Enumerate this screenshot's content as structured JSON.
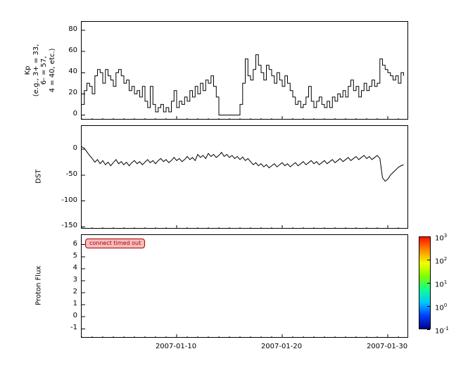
{
  "figure": {
    "background": "#ffffff",
    "line_color": "#000000"
  },
  "xaxis": {
    "xlim_days": [
      1,
      32
    ],
    "tick_days": [
      10,
      20,
      30
    ],
    "tick_labels": [
      "2007-01-10",
      "2007-01-20",
      "2007-01-30"
    ],
    "minor_tick_step_days": 1
  },
  "chart_data": [
    {
      "type": "line",
      "style": "step",
      "series_name": "Kp",
      "ylabel": "Kp\n(e.g., 3+ = 33,\n6- = 57,\n4 = 40, etc.)",
      "ylim": [
        -5,
        88
      ],
      "yticks": [
        0,
        20,
        40,
        60,
        80
      ],
      "x_start_day": 1.0,
      "x_step_days": 0.25,
      "values": [
        10,
        23,
        30,
        27,
        20,
        37,
        43,
        40,
        30,
        43,
        37,
        33,
        27,
        40,
        43,
        37,
        30,
        33,
        23,
        27,
        20,
        23,
        17,
        27,
        13,
        7,
        27,
        10,
        3,
        7,
        10,
        3,
        7,
        3,
        13,
        23,
        7,
        13,
        10,
        17,
        13,
        23,
        17,
        27,
        20,
        30,
        23,
        33,
        30,
        37,
        27,
        17,
        0,
        0,
        0,
        0,
        0,
        0,
        0,
        0,
        10,
        30,
        53,
        37,
        33,
        43,
        57,
        47,
        40,
        33,
        47,
        43,
        37,
        30,
        40,
        33,
        27,
        37,
        30,
        23,
        17,
        10,
        13,
        7,
        10,
        17,
        27,
        13,
        7,
        13,
        17,
        10,
        7,
        13,
        7,
        17,
        13,
        20,
        17,
        23,
        17,
        27,
        33,
        23,
        27,
        17,
        23,
        30,
        23,
        27,
        33,
        27,
        30,
        53,
        47,
        43,
        40,
        37,
        33,
        37,
        30,
        40,
        37
      ]
    },
    {
      "type": "line",
      "style": "linear",
      "series_name": "DST",
      "ylabel": "DST",
      "ylim": [
        -155,
        45
      ],
      "yticks": [
        0,
        -50,
        -100,
        -150
      ],
      "x_start_day": 1.0,
      "x_step_days": 0.25,
      "values": [
        5,
        2,
        -5,
        -12,
        -18,
        -25,
        -20,
        -28,
        -22,
        -30,
        -25,
        -32,
        -26,
        -20,
        -28,
        -24,
        -30,
        -25,
        -32,
        -26,
        -22,
        -28,
        -24,
        -30,
        -25,
        -20,
        -26,
        -22,
        -28,
        -22,
        -18,
        -24,
        -20,
        -26,
        -22,
        -16,
        -22,
        -18,
        -24,
        -20,
        -14,
        -20,
        -16,
        -22,
        -10,
        -16,
        -12,
        -18,
        -8,
        -14,
        -10,
        -16,
        -12,
        -6,
        -14,
        -10,
        -16,
        -12,
        -18,
        -14,
        -20,
        -15,
        -22,
        -18,
        -24,
        -30,
        -26,
        -32,
        -28,
        -34,
        -30,
        -36,
        -32,
        -28,
        -34,
        -30,
        -26,
        -32,
        -28,
        -34,
        -30,
        -26,
        -32,
        -28,
        -24,
        -30,
        -26,
        -22,
        -28,
        -24,
        -30,
        -26,
        -22,
        -28,
        -24,
        -20,
        -26,
        -22,
        -18,
        -24,
        -20,
        -16,
        -22,
        -18,
        -14,
        -20,
        -16,
        -12,
        -18,
        -14,
        -20,
        -16,
        -12,
        -18,
        -55,
        -62,
        -58,
        -50,
        -45,
        -40,
        -35,
        -32,
        -30
      ]
    },
    {
      "type": "heatmap",
      "series_name": "Proton Flux",
      "ylabel": "Proton Flux",
      "ylim": [
        -1.8,
        6.8
      ],
      "yticks": [
        -1,
        0,
        1,
        2,
        3,
        4,
        5,
        6
      ],
      "values": []
    }
  ],
  "error_badge": {
    "label": "connect timed out",
    "text_color": "#aa0000",
    "bg_color": "#f5bcbc",
    "border_color": "#aa0000"
  },
  "colorbar": {
    "scale": "log",
    "tick_exponents": [
      "3",
      "2",
      "1",
      "0",
      "-1"
    ],
    "colors_bottom_to_top": [
      "#000089",
      "#0040ff",
      "#00c8ff",
      "#10ff90",
      "#80ff00",
      "#f0ff00",
      "#ff8c00",
      "#ff1000"
    ]
  }
}
